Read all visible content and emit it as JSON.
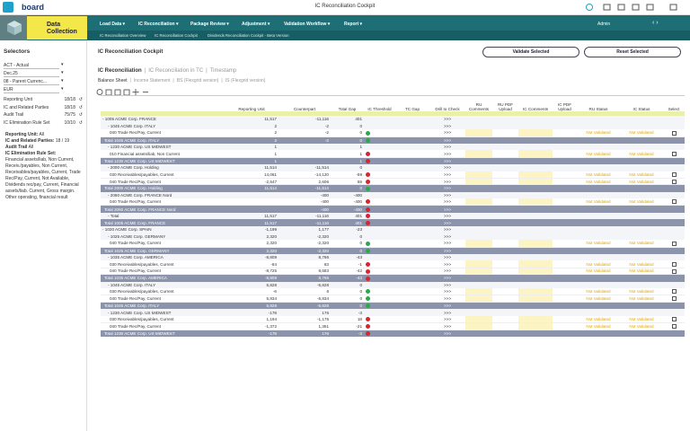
{
  "app": {
    "brand": "board",
    "window_title": "IC Reconciliation Cockpit",
    "module": "Data Collection",
    "user": "Admin"
  },
  "nav": {
    "menus": [
      "Load Data",
      "IC Reconciliation",
      "Package Review",
      "Adjustment",
      "Validation Workflow",
      "Report"
    ],
    "submenus": [
      "IC Reconciliation Overview",
      "IC Reconciliation Cockpit",
      "Dividends Reconciliation Cockpit - Beta Version"
    ]
  },
  "selectors": {
    "title": "Selectors",
    "dropdowns": [
      "ACT - Actual",
      "Dec.25",
      "08 - Parent Currenc...",
      "EUR"
    ],
    "lists": [
      {
        "name": "Reporting Unit",
        "count": "18/18"
      },
      {
        "name": "IC and Related Parties",
        "count": "18/18"
      },
      {
        "name": "Audit Trail",
        "count": "75/75"
      },
      {
        "name": "IC Elimination Rule Set",
        "count": "10/10"
      }
    ],
    "summary": [
      {
        "label": "Reporting Unit:",
        "value": "All"
      },
      {
        "label": "IC and Related Parties:",
        "value": "18 / 19"
      },
      {
        "label": "Audit Trail",
        "value": "All"
      },
      {
        "label": "IC Elimination Rule Set:",
        "value": "Financial assets/liab, Non Current, Receiv./payables, Non Current, Receivables/payables, Current, Trade Rec/Pay, Current, Not Available, Dividends rec/pay, Current, Financial assets/liab. Current, Gross margin. Other operating, financial result"
      }
    ]
  },
  "main": {
    "title": "IC Reconciliation Cockpit",
    "buttons": [
      "Validate Selected",
      "Reset Selected"
    ],
    "tabs": [
      "IC Reconciliation",
      "IC Reconciliation in TC",
      "Timestamp"
    ],
    "subtabs": [
      "Balance Sheet",
      "Income Statement",
      "BS (Flexgrid version)",
      "IS (Flexgrid version)"
    ]
  },
  "table": {
    "columns": [
      "Reporting Unit",
      "Counterpart",
      "Total Gap",
      "IC Threshold",
      "TC Gap",
      "Drill to Check",
      "RU Comments",
      "RU PDF Upload",
      "IC Comments",
      "IC PDF Upload",
      "RU Status",
      "IC Status",
      "Select"
    ],
    "drill": ">>>",
    "status": "Not Validated",
    "rows": [
      {
        "kind": "top",
        "label": "- 1005 ACME Corp. FRANCE",
        "ru": "11,517",
        "cp": "-11,116",
        "gap": "401"
      },
      {
        "kind": "group",
        "label": "- 1045 ACME Corp. ITALY",
        "ru": "2",
        "cp": "-2",
        "gap": "0"
      },
      {
        "kind": "item",
        "label": "040 Trade Rec/Pay, Current",
        "ru": "2",
        "cp": "-2",
        "gap": "0",
        "thr": "green"
      },
      {
        "kind": "total",
        "label": "Total 1045 ACME Corp. ITALY",
        "ru": "2",
        "cp": "-2",
        "gap": "0",
        "thr": "green"
      },
      {
        "kind": "group",
        "label": "- 1230 ACME Corp. US MIDWEST",
        "ru": "1",
        "gap": "1"
      },
      {
        "kind": "item",
        "label": "010 Financial assets/liab, Non Current",
        "ru": "1",
        "gap": "1",
        "thr": "red"
      },
      {
        "kind": "total",
        "label": "Total 1230 ACME Corp. US MIDWEST",
        "ru": "1",
        "gap": "1",
        "thr": "red"
      },
      {
        "kind": "group",
        "label": "- 2000 ACME Corp. Holding",
        "ru": "11,514",
        "cp": "-11,514",
        "gap": "0"
      },
      {
        "kind": "item",
        "label": "030 Receivables/payables, Current",
        "ru": "14,061",
        "cp": "-14,120",
        "gap": "-59",
        "thr": "red"
      },
      {
        "kind": "item",
        "label": "040 Trade Rec/Pay, Current",
        "ru": "-2,547",
        "cp": "2,606",
        "gap": "59",
        "thr": "red"
      },
      {
        "kind": "total",
        "label": "Total 2000 ACME Corp. Holding",
        "ru": "11,514",
        "cp": "-11,514",
        "gap": "0",
        "thr": "green"
      },
      {
        "kind": "group",
        "label": "- 2060 ACME Corp. FRANCE Nord",
        "cp": "-400",
        "gap": "-400"
      },
      {
        "kind": "item",
        "label": "040 Trade Rec/Pay, Current",
        "cp": "-400",
        "gap": "-400",
        "thr": "red"
      },
      {
        "kind": "total",
        "label": "Total 2060 ACME Corp. FRANCE Nord",
        "cp": "-400",
        "gap": "-400",
        "thr": "red"
      },
      {
        "kind": "group",
        "label": "- Total",
        "ru": "11,517",
        "cp": "-11,116",
        "gap": "401",
        "thr": "red"
      },
      {
        "kind": "total",
        "label": "Total 1005 ACME Corp. FRANCE",
        "ru": "11,517",
        "cp": "-11,116",
        "gap": "401",
        "thr": "red"
      },
      {
        "kind": "top",
        "label": "- 1020 ACME Corp. SPAIN",
        "ru": "-1,199",
        "cp": "1,177",
        "gap": "-23"
      },
      {
        "kind": "group",
        "label": "- 1025 ACME Corp. GERMANY",
        "ru": "2,320",
        "cp": "-2,320",
        "gap": "0"
      },
      {
        "kind": "item",
        "label": "040 Trade Rec/Pay, Current",
        "ru": "2,320",
        "cp": "-2,320",
        "gap": "0",
        "thr": "green"
      },
      {
        "kind": "total",
        "label": "Total 1025 ACME Corp. GERMANY",
        "ru": "2,320",
        "cp": "-2,320",
        "gap": "0",
        "thr": "green"
      },
      {
        "kind": "group",
        "label": "- 1035 ACME Corp. AMERICA",
        "ru": "-8,809",
        "cp": "8,766",
        "gap": "-43"
      },
      {
        "kind": "item",
        "label": "030 Receivables/payables, Current",
        "ru": "-84",
        "cp": "83",
        "gap": "-1",
        "thr": "red"
      },
      {
        "kind": "item",
        "label": "040 Trade Rec/Pay, Current",
        "ru": "-8,725",
        "cp": "8,683",
        "gap": "-42",
        "thr": "red"
      },
      {
        "kind": "total",
        "label": "Total 1035 ACME Corp. AMERICA",
        "ru": "-8,809",
        "cp": "8,766",
        "gap": "-43",
        "thr": "red"
      },
      {
        "kind": "group",
        "label": "- 1045 ACME Corp. ITALY",
        "ru": "5,828",
        "cp": "-5,828",
        "gap": "0"
      },
      {
        "kind": "item",
        "label": "030 Receivables/payables, Current",
        "ru": "-6",
        "cp": "6",
        "gap": "0",
        "thr": "green"
      },
      {
        "kind": "item",
        "label": "040 Trade Rec/Pay, Current",
        "ru": "5,834",
        "cp": "-5,834",
        "gap": "0",
        "thr": "green"
      },
      {
        "kind": "total",
        "label": "Total 1045 ACME Corp. ITALY",
        "ru": "5,828",
        "cp": "-5,828",
        "gap": "0",
        "thr": "green"
      },
      {
        "kind": "group",
        "label": "- 1230 ACME Corp. US MIDWEST",
        "ru": "-178",
        "cp": "176",
        "gap": "-3"
      },
      {
        "kind": "item",
        "label": "030 Receivables/payables, Current",
        "ru": "1,194",
        "cp": "-1,176",
        "gap": "18",
        "thr": "red"
      },
      {
        "kind": "item",
        "label": "040 Trade Rec/Pay, Current",
        "ru": "-1,372",
        "cp": "1,351",
        "gap": "-21",
        "thr": "red"
      },
      {
        "kind": "total",
        "label": "Total 1230 ACME Corp. US MIDWEST",
        "ru": "-178",
        "cp": "176",
        "gap": "-3",
        "thr": "red"
      }
    ]
  }
}
